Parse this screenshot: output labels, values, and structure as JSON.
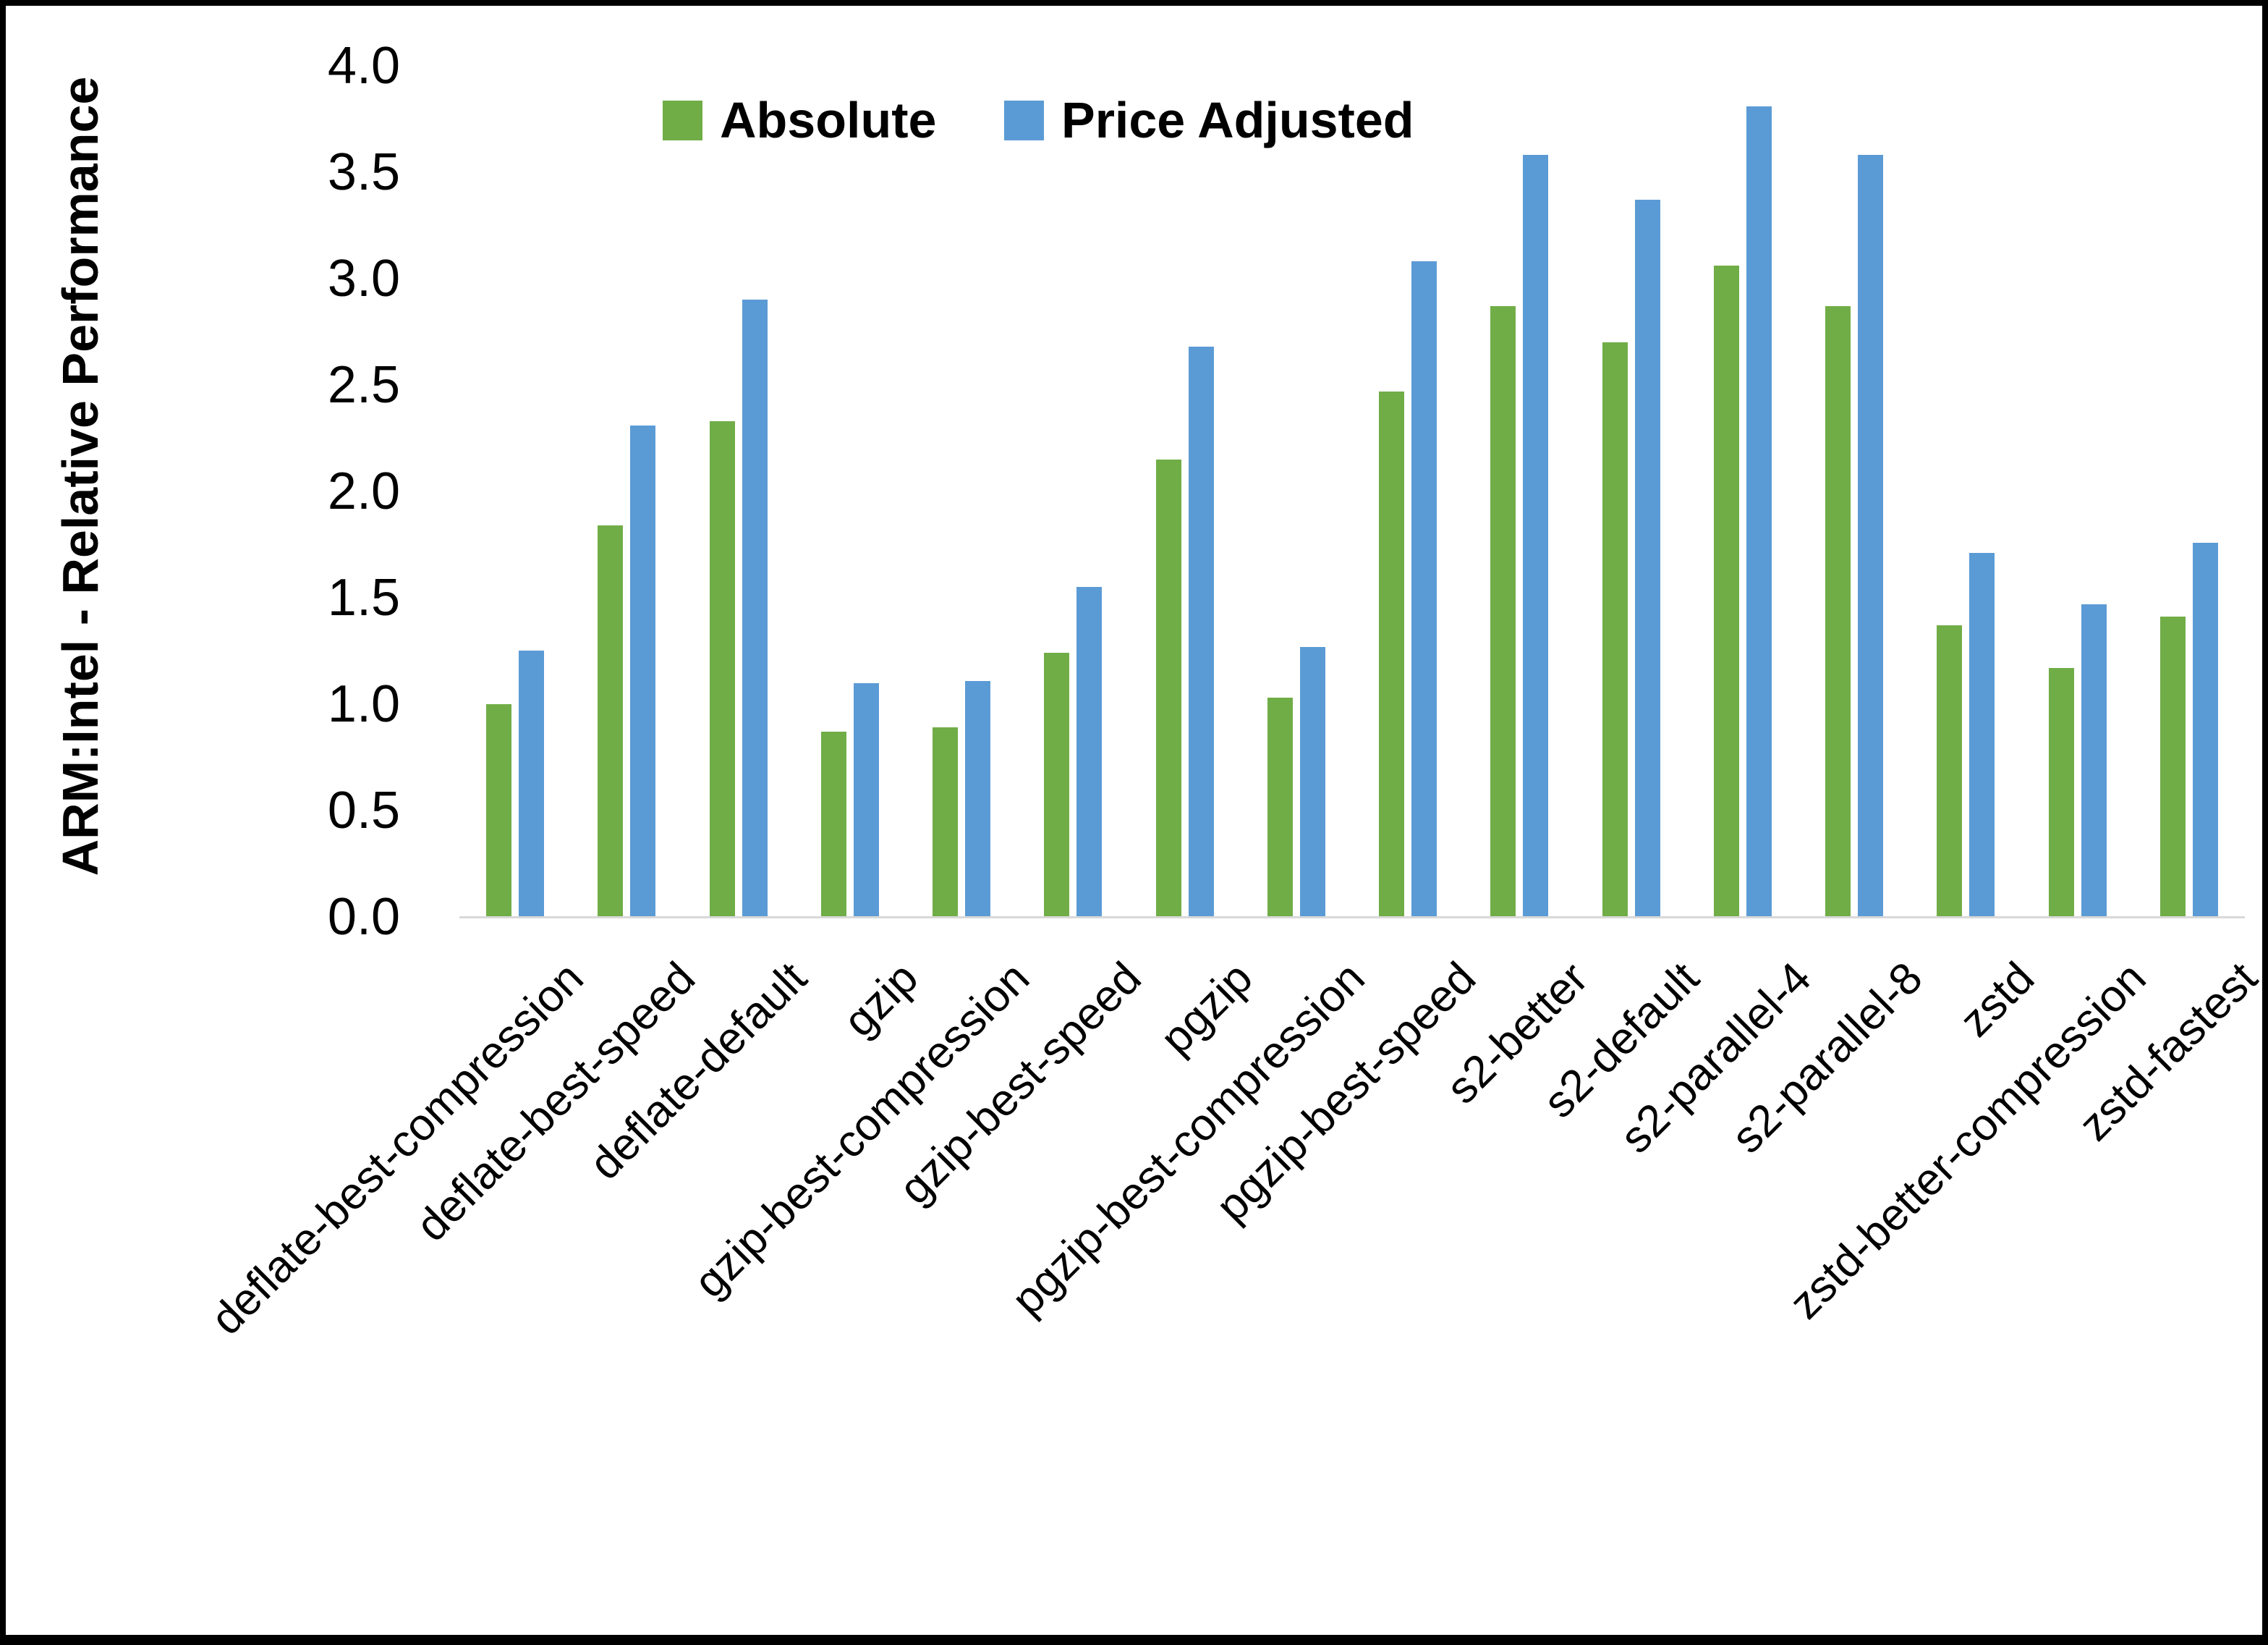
{
  "page": {
    "background": "#ffffff",
    "frame_color": "#000000",
    "text_color": "#000000",
    "axis_line_color": "#d9d9d9"
  },
  "legend": {
    "absolute_label": "Absolute",
    "price_adjusted_label": "Price Adjusted"
  },
  "chart_data": {
    "type": "bar",
    "title": "",
    "xlabel": "",
    "ylabel": "ARM:Intel - Relative Performance",
    "ylim": [
      0.0,
      4.0
    ],
    "ytick_step": 0.5,
    "ytick_labels": [
      "0.0",
      "0.5",
      "1.0",
      "1.5",
      "2.0",
      "2.5",
      "3.0",
      "3.5",
      "4.0"
    ],
    "grid": false,
    "legend_position": "top-center",
    "categories": [
      "deflate-best-compression",
      "deflate-best-speed",
      "deflate-default",
      "gzip",
      "gzip-best-compression",
      "gzip-best-speed",
      "pgzip",
      "pgzip-best-compression",
      "pgzip-best-speed",
      "s2-better",
      "s2-default",
      "s2-parallel-4",
      "s2-parallel-8",
      "zstd",
      "zstd-better-compression",
      "zstd-fastest"
    ],
    "series": [
      {
        "name": "Absolute",
        "color": "#70AD47",
        "values": [
          1.0,
          1.84,
          2.33,
          0.87,
          0.89,
          1.24,
          2.15,
          1.03,
          2.47,
          2.87,
          2.7,
          3.06,
          2.87,
          1.37,
          1.17,
          1.41
        ]
      },
      {
        "name": "Price Adjusted",
        "color": "#5B9BD5",
        "values": [
          1.25,
          2.31,
          2.9,
          1.1,
          1.11,
          1.55,
          2.68,
          1.27,
          3.08,
          3.58,
          3.37,
          3.81,
          3.58,
          1.71,
          1.47,
          1.76
        ]
      }
    ]
  }
}
